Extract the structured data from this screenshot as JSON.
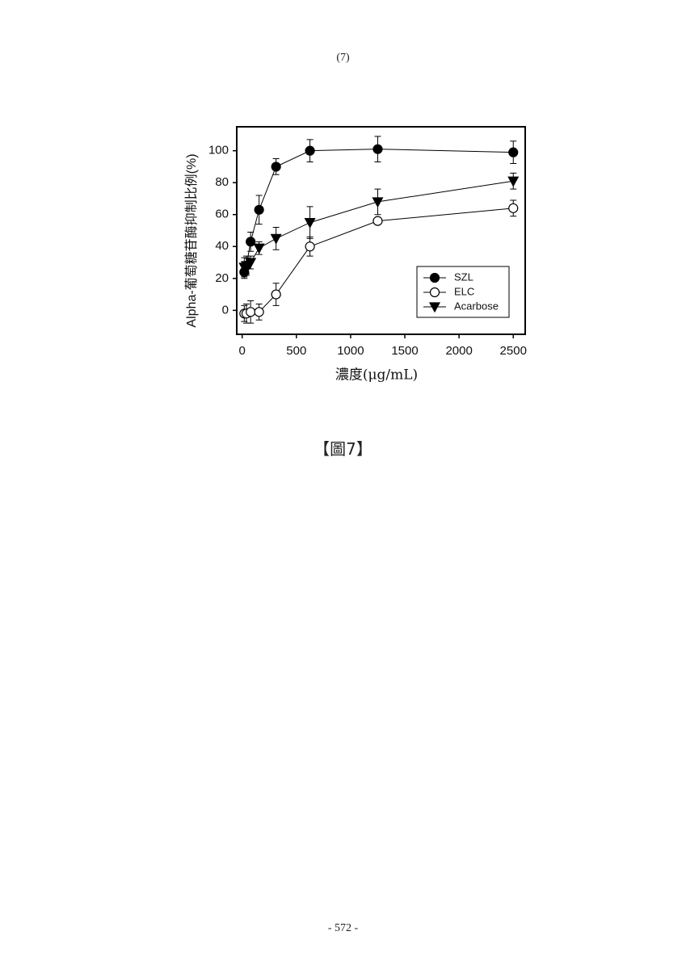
{
  "header": "(7)",
  "chart_data": {
    "type": "line",
    "x_label": "濃度(μg/mL)",
    "y_label": "Alpha-葡萄糖苷酶抑制比例(%)",
    "x": [
      19.5,
      39,
      78,
      156,
      312.5,
      625,
      1250,
      2500
    ],
    "series": [
      {
        "name": "SZL",
        "color": "#000000",
        "marker": "circle-filled",
        "values": [
          24,
          28,
          43,
          63,
          90,
          100,
          101,
          99
        ],
        "errors": [
          4,
          5,
          6,
          9,
          5,
          7,
          8,
          7
        ]
      },
      {
        "name": "ELC",
        "color": "#000000",
        "marker": "circle-open",
        "values": [
          -2,
          -2,
          -1,
          -1,
          10,
          40,
          56,
          64
        ],
        "errors": [
          5,
          6,
          7,
          5,
          7,
          6,
          2,
          5
        ]
      },
      {
        "name": "Acarbose",
        "color": "#000000",
        "marker": "triangle-down",
        "values": [
          27,
          28,
          30,
          39,
          45,
          55,
          68,
          81
        ],
        "errors": [
          6,
          6,
          4,
          4,
          7,
          10,
          8,
          5
        ]
      }
    ],
    "xlim": [
      -50,
      2610
    ],
    "ylim": [
      -15,
      115
    ],
    "xticks": [
      0,
      500,
      1000,
      1500,
      2000,
      2500
    ],
    "yticks": [
      0,
      20,
      40,
      60,
      80,
      100
    ],
    "legend": "lower-right"
  },
  "caption": "【圖7】",
  "footer": "- 572 -"
}
